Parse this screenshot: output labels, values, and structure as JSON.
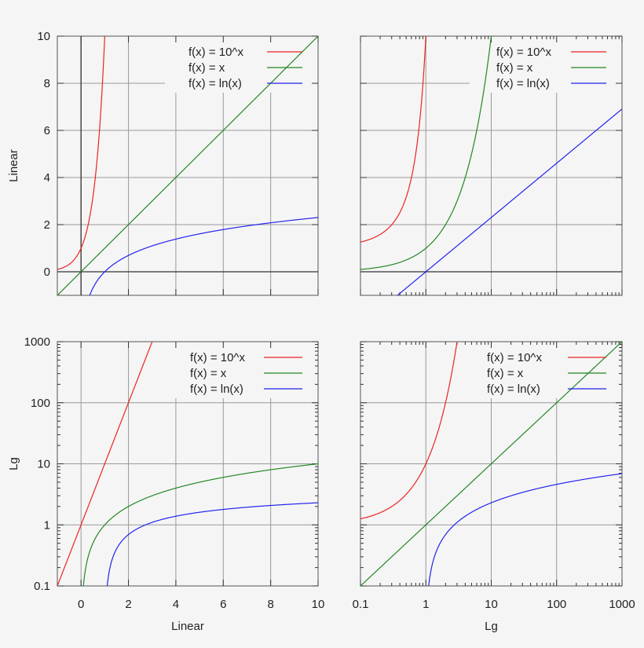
{
  "colors": {
    "background": "#f5f5f5",
    "grid": "#999999",
    "axis": "#333333",
    "exp": "#ee2222",
    "identity": "#228822",
    "log": "#2222ee"
  },
  "row_labels": [
    "Linear",
    "Lg"
  ],
  "column_labels": [
    "Linear",
    "Lg"
  ],
  "chart_data": [
    {
      "type": "line",
      "position": "top-left",
      "xscale": "linear",
      "yscale": "linear",
      "xlim": [
        -1,
        10
      ],
      "ylim": [
        -1,
        10
      ],
      "xticks": [
        0,
        2,
        4,
        6,
        8,
        10
      ],
      "yticks": [
        0,
        2,
        4,
        6,
        8,
        10
      ],
      "xticklabels": [],
      "yticklabels": [
        "0",
        "2",
        "4",
        "6",
        "8",
        "10"
      ],
      "xlabel": "",
      "ylabel": "Linear",
      "grid": true,
      "legend": "top-right",
      "series": [
        {
          "name": "f(x) = 10^x",
          "function": "10^x",
          "color": "#ee2222"
        },
        {
          "name": "f(x) = x",
          "function": "x",
          "color": "#228822"
        },
        {
          "name": "f(x) = ln(x)",
          "function": "ln(x)",
          "color": "#2222ee"
        }
      ]
    },
    {
      "type": "line",
      "position": "top-right",
      "xscale": "log",
      "yscale": "linear",
      "xlim": [
        0.1,
        1000
      ],
      "ylim": [
        -1,
        10
      ],
      "xticks": [
        0.1,
        1,
        10,
        100,
        1000
      ],
      "yticks": [
        0,
        2,
        4,
        6,
        8,
        10
      ],
      "xticklabels": [],
      "yticklabels": [],
      "xlabel": "",
      "ylabel": "",
      "grid": true,
      "legend": "top-right",
      "series": [
        {
          "name": "f(x) = 10^x",
          "function": "10^x",
          "color": "#ee2222"
        },
        {
          "name": "f(x) = x",
          "function": "x",
          "color": "#228822"
        },
        {
          "name": "f(x) = ln(x)",
          "function": "ln(x)",
          "color": "#2222ee"
        }
      ]
    },
    {
      "type": "line",
      "position": "bottom-left",
      "xscale": "linear",
      "yscale": "log",
      "xlim": [
        -1,
        10
      ],
      "ylim": [
        0.1,
        1000
      ],
      "xticks": [
        0,
        2,
        4,
        6,
        8,
        10
      ],
      "yticks": [
        0.1,
        1,
        10,
        100,
        1000
      ],
      "xticklabels": [
        "0",
        "2",
        "4",
        "6",
        "8",
        "10"
      ],
      "yticklabels": [
        "0.1",
        "1",
        "10",
        "100",
        "1000"
      ],
      "xlabel": "Linear",
      "ylabel": "Lg",
      "grid": true,
      "legend": "top-right",
      "series": [
        {
          "name": "f(x) = 10^x",
          "function": "10^x",
          "color": "#ee2222"
        },
        {
          "name": "f(x) = x",
          "function": "x",
          "color": "#228822"
        },
        {
          "name": "f(x) = ln(x)",
          "function": "ln(x)",
          "color": "#2222ee"
        }
      ]
    },
    {
      "type": "line",
      "position": "bottom-right",
      "xscale": "log",
      "yscale": "log",
      "xlim": [
        0.1,
        1000
      ],
      "ylim": [
        0.1,
        1000
      ],
      "xticks": [
        0.1,
        1,
        10,
        100,
        1000
      ],
      "yticks": [
        0.1,
        1,
        10,
        100,
        1000
      ],
      "xticklabels": [
        "0.1",
        "1",
        "10",
        "100",
        "1000"
      ],
      "yticklabels": [],
      "xlabel": "Lg",
      "ylabel": "",
      "grid": true,
      "legend": "top-right",
      "series": [
        {
          "name": "f(x) = 10^x",
          "function": "10^x",
          "color": "#ee2222"
        },
        {
          "name": "f(x) = x",
          "function": "x",
          "color": "#228822"
        },
        {
          "name": "f(x) = ln(x)",
          "function": "ln(x)",
          "color": "#2222ee"
        }
      ]
    }
  ]
}
